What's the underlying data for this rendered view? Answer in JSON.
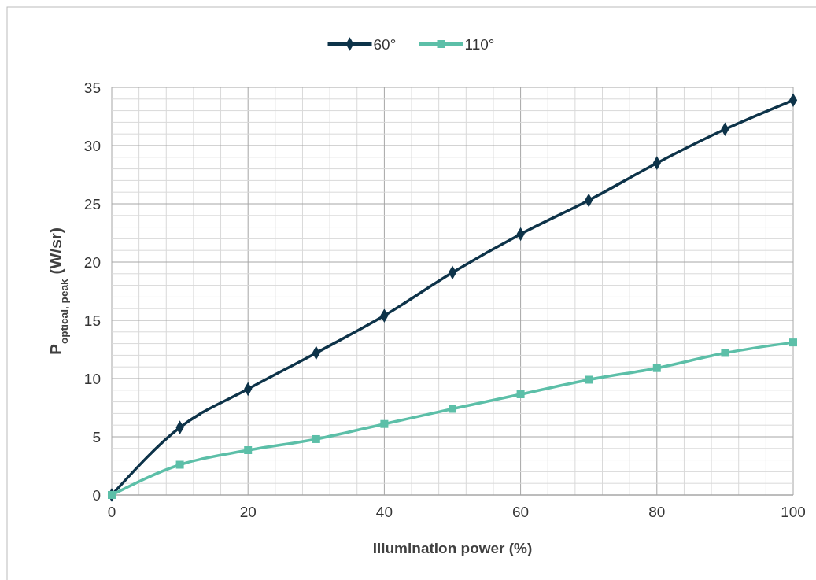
{
  "chart_data": {
    "type": "line",
    "xlabel": "Illumination power (%)",
    "ylabel": "P$_{optical, peak}$ (W/sr)",
    "x": [
      0,
      10,
      20,
      30,
      40,
      50,
      60,
      70,
      80,
      90,
      100
    ],
    "series": [
      {
        "name": "60°",
        "color": "#0d3349",
        "marker": "diamond",
        "values": [
          0,
          5.8,
          9.1,
          12.2,
          15.4,
          19.1,
          22.4,
          25.3,
          28.5,
          31.4,
          33.9
        ]
      },
      {
        "name": "110°",
        "color": "#5cbfa8",
        "marker": "square",
        "values": [
          0,
          2.6,
          3.85,
          4.8,
          6.1,
          7.4,
          8.65,
          9.9,
          10.9,
          12.2,
          13.1
        ]
      }
    ],
    "xlim": [
      0,
      100
    ],
    "ylim": [
      0,
      35
    ],
    "xticks": [
      0,
      {
        "value": 4,
        "label": null
      },
      {
        "value": 8,
        "label": null
      },
      {
        "value": 12,
        "label": null
      },
      {
        "value": 16,
        "label": null
      },
      20,
      {
        "value": 24,
        "label": null
      },
      {
        "value": 28,
        "label": null
      },
      {
        "value": 32,
        "label": null
      },
      {
        "value": 36,
        "label": null
      },
      40,
      {
        "value": 44,
        "label": null
      },
      {
        "value": 48,
        "label": null
      },
      {
        "value": 52,
        "label": null
      },
      {
        "value": 56,
        "label": null
      },
      60,
      {
        "value": 64,
        "label": null
      },
      {
        "value": 68,
        "label": null
      },
      {
        "value": 72,
        "label": null
      },
      {
        "value": 76,
        "label": null
      },
      80,
      {
        "value": 84,
        "label": null
      },
      {
        "value": 88,
        "label": null
      },
      {
        "value": 92,
        "label": null
      },
      {
        "value": 96,
        "label": null
      },
      100
    ],
    "yticks": [
      0,
      {
        "value": 1,
        "label": null
      },
      {
        "value": 2,
        "label": null
      },
      {
        "value": 3,
        "label": null
      },
      {
        "value": 4,
        "label": null
      },
      5,
      {
        "value": 6,
        "label": null
      },
      {
        "value": 7,
        "label": null
      },
      {
        "value": 8,
        "label": null
      },
      {
        "value": 9,
        "label": null
      },
      10,
      {
        "value": 11,
        "label": null
      },
      {
        "value": 12,
        "label": null
      },
      {
        "value": 13,
        "label": null
      },
      {
        "value": 14,
        "label": null
      },
      15,
      {
        "value": 16,
        "label": null
      },
      {
        "value": 17,
        "label": null
      },
      {
        "value": 18,
        "label": null
      },
      {
        "value": 19,
        "label": null
      },
      20,
      {
        "value": 21,
        "label": null
      },
      {
        "value": 22,
        "label": null
      },
      {
        "value": 23,
        "label": null
      },
      {
        "value": 24,
        "label": null
      },
      25,
      {
        "value": 26,
        "label": null
      },
      {
        "value": 27,
        "label": null
      },
      {
        "value": 28,
        "label": null
      },
      {
        "value": 29,
        "label": null
      },
      30,
      {
        "value": 31,
        "label": null
      },
      {
        "value": 32,
        "label": null
      },
      {
        "value": 33,
        "label": null
      },
      {
        "value": 34,
        "label": null
      },
      35
    ],
    "grid": true,
    "legend": "top"
  }
}
